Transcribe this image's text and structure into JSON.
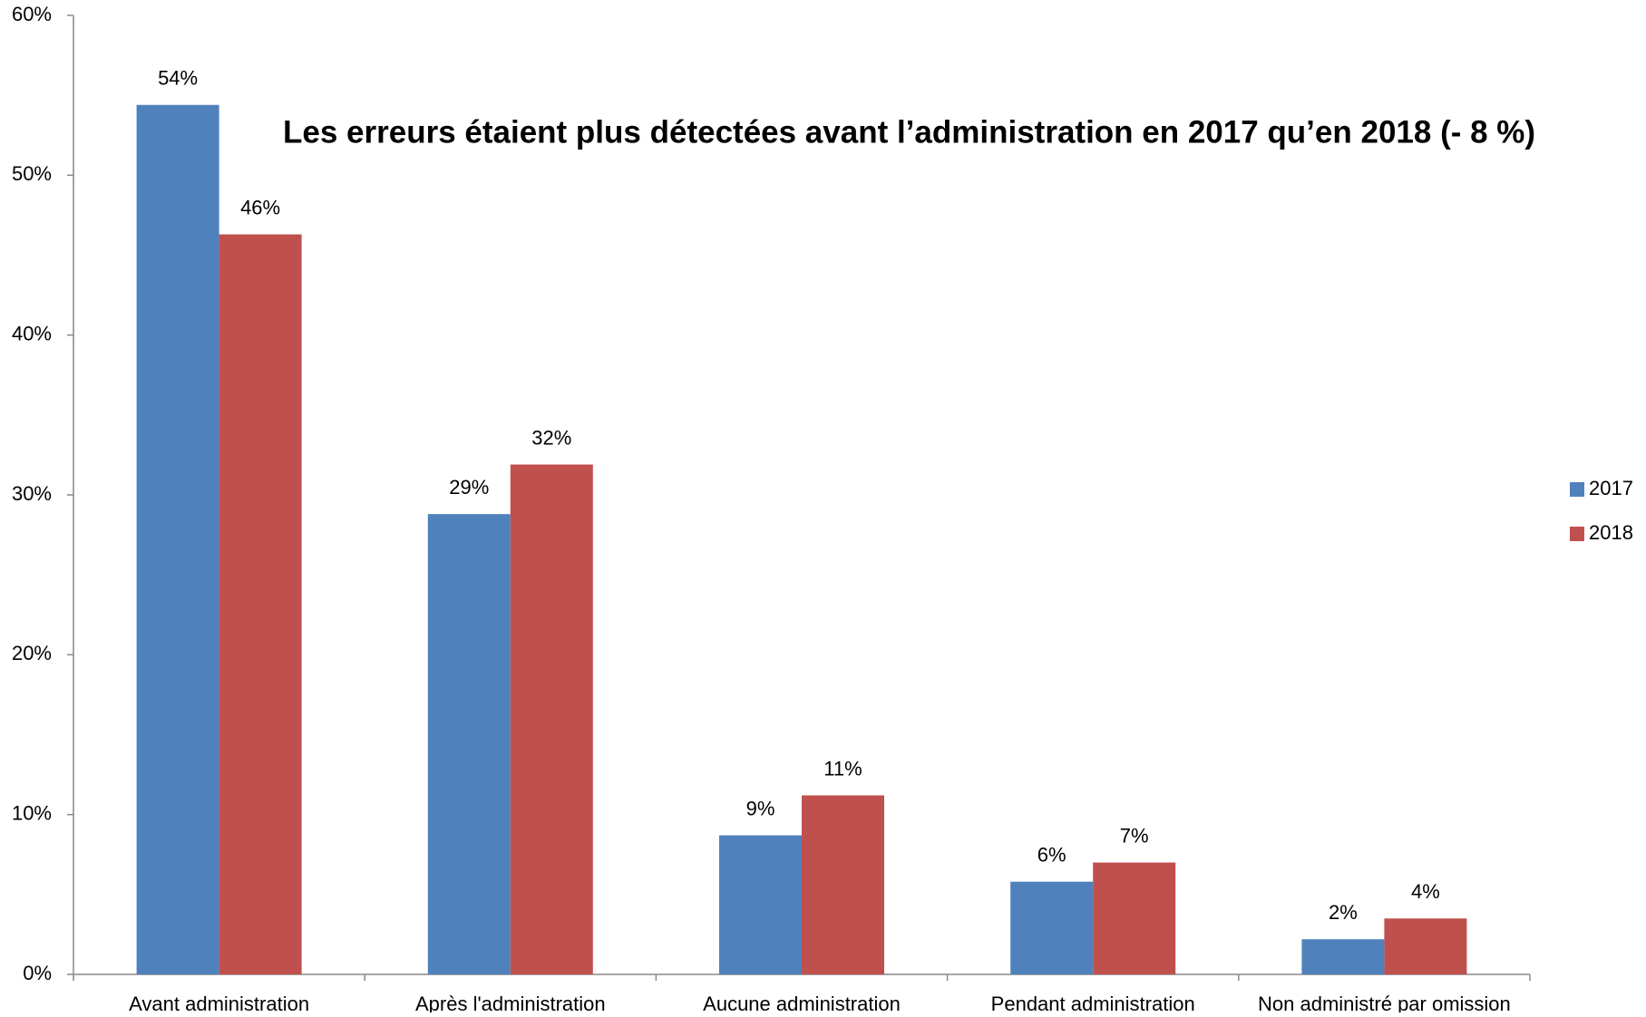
{
  "chart_data": {
    "type": "bar",
    "annotation": "Les erreurs étaient plus détectées avant l’administration en 2017 qu’en 2018 (- 8 %)",
    "annotation_color": "#ff0000",
    "categories": [
      "Avant administration",
      "Après l'administration",
      "Aucune administration",
      "Pendant administration",
      "Non administré par omission"
    ],
    "series": [
      {
        "name": "2017",
        "color": "#4f81bd",
        "values": [
          54.4,
          28.8,
          8.7,
          5.8,
          2.2
        ],
        "value_labels": [
          "54%",
          "29%",
          "9%",
          "6%",
          "2%"
        ]
      },
      {
        "name": "2018",
        "color": "#c0504d",
        "values": [
          46.3,
          31.9,
          11.2,
          7.0,
          3.5
        ],
        "value_labels": [
          "46%",
          "32%",
          "11%",
          "7%",
          "4%"
        ]
      }
    ],
    "ylim": [
      0,
      60
    ],
    "yticks": [
      {
        "value": 0,
        "label": "0%"
      },
      {
        "value": 10,
        "label": "10%"
      },
      {
        "value": 20,
        "label": "20%"
      },
      {
        "value": 30,
        "label": "30%"
      },
      {
        "value": 40,
        "label": "40%"
      },
      {
        "value": 50,
        "label": "50%"
      },
      {
        "value": 60,
        "label": "60%"
      }
    ],
    "grid": false,
    "legend": "right"
  }
}
